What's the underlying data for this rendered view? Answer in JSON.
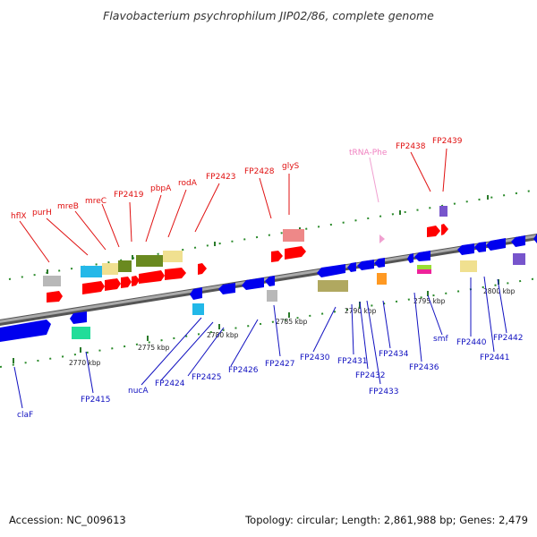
{
  "title": "Flavobacterium psychrophilum JIP02/86, complete genome",
  "footer": {
    "accession": "Accession: NC_009613",
    "summary": "Topology: circular; Length: 2,861,988 bp; Genes: 2,479"
  },
  "colors": {
    "forward_label": "#e01010",
    "reverse_label": "#1010c0",
    "trna_label": "#f080c0",
    "forward_gene": "#ff0000",
    "reverse_gene": "#0000ee",
    "backbone": "#808080"
  },
  "scale_labels": [
    "2770 kbp",
    "2775 kbp",
    "2780 kbp",
    "2785 kbp",
    "2790 kbp",
    "2795 kbp",
    "2800 kbp"
  ],
  "forward_labels": [
    "hflX",
    "purH",
    "mreB",
    "mreC",
    "FP2419",
    "pbpA",
    "rodA",
    "FP2423",
    "FP2428",
    "glyS",
    "FP2438",
    "FP2439"
  ],
  "trna_labels": [
    "tRNA-Phe"
  ],
  "reverse_labels": [
    "claF",
    "FP2415",
    "nucA",
    "FP2424",
    "FP2425",
    "FP2426",
    "FP2427",
    "FP2430",
    "FP2431",
    "FP2432",
    "FP2433",
    "FP2434",
    "FP2436",
    "smf",
    "FP2440",
    "FP2441",
    "FP2442"
  ]
}
